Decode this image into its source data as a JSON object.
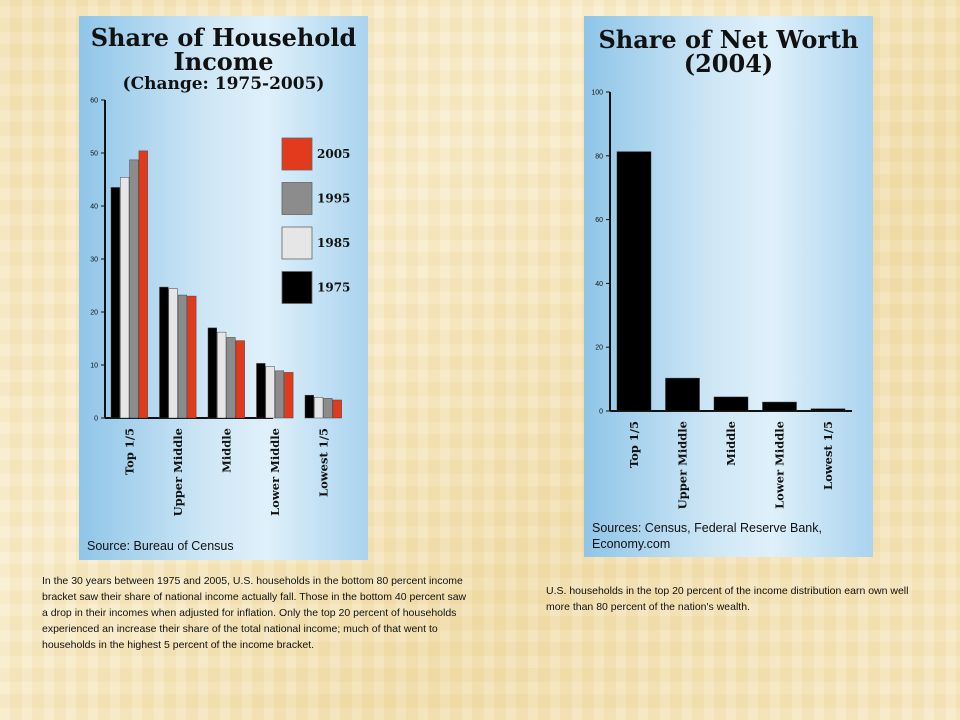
{
  "left_chart": {
    "title_line1": "Share of Household",
    "title_line2": "Income",
    "subtitle": "(Change: 1975-2005)",
    "source": "Source: Bureau of Census"
  },
  "right_chart": {
    "title_line1": "Share of Net Worth",
    "title_line2": "(2004)",
    "source": "Sources: Census, Federal Reserve Bank, Economy.com"
  },
  "captions": {
    "left": "In the 30 years between 1975 and 2005, U.S. households in the bottom 80 percent income bracket saw their share of national income actually fall. Those in the bottom 40 percent saw a drop in their incomes when adjusted for inflation. Only the top 20 percent of households experienced an increase their share of the total national income; much of that went to households in the highest 5 percent of the income bracket.",
    "right": "U.S. households in the top 20 percent of the income distribution earn own well more than 80 percent of the nation's wealth."
  },
  "chart_data": [
    {
      "type": "bar",
      "title": "Share of Household Income",
      "subtitle": "(Change: 1975-2005)",
      "categories": [
        "Top 1/5",
        "Upper Middle",
        "Middle",
        "Lower Middle",
        "Lowest 1/5"
      ],
      "series": [
        {
          "name": "1975",
          "color": "#000000",
          "values": [
            43.5,
            24.7,
            17.0,
            10.3,
            4.3
          ]
        },
        {
          "name": "1985",
          "color": "#e6e6e6",
          "values": [
            45.4,
            24.4,
            16.2,
            9.7,
            3.9
          ]
        },
        {
          "name": "1995",
          "color": "#8c8c8c",
          "values": [
            48.7,
            23.2,
            15.2,
            8.9,
            3.7
          ]
        },
        {
          "name": "2005",
          "color": "#e23a1c",
          "values": [
            50.4,
            23.0,
            14.6,
            8.6,
            3.4
          ]
        }
      ],
      "legend_order": [
        "2005",
        "1995",
        "1985",
        "1975"
      ],
      "ylim": [
        0,
        60
      ],
      "yticks": [
        0,
        10,
        20,
        30,
        40,
        50,
        60
      ],
      "legend_position": "right",
      "grid": false,
      "source": "Source: Bureau of Census"
    },
    {
      "type": "bar",
      "title": "Share of Net Worth (2004)",
      "categories": [
        "Top 1/5",
        "Upper Middle",
        "Middle",
        "Lower Middle",
        "Lowest 1/5"
      ],
      "values": [
        81.3,
        10.3,
        4.4,
        2.8,
        0.7
      ],
      "color": "#000000",
      "ylim": [
        0,
        100
      ],
      "yticks": [
        0,
        20,
        40,
        60,
        80,
        100
      ],
      "grid": false,
      "source": "Sources: Census, Federal Reserve Bank, Economy.com"
    }
  ]
}
